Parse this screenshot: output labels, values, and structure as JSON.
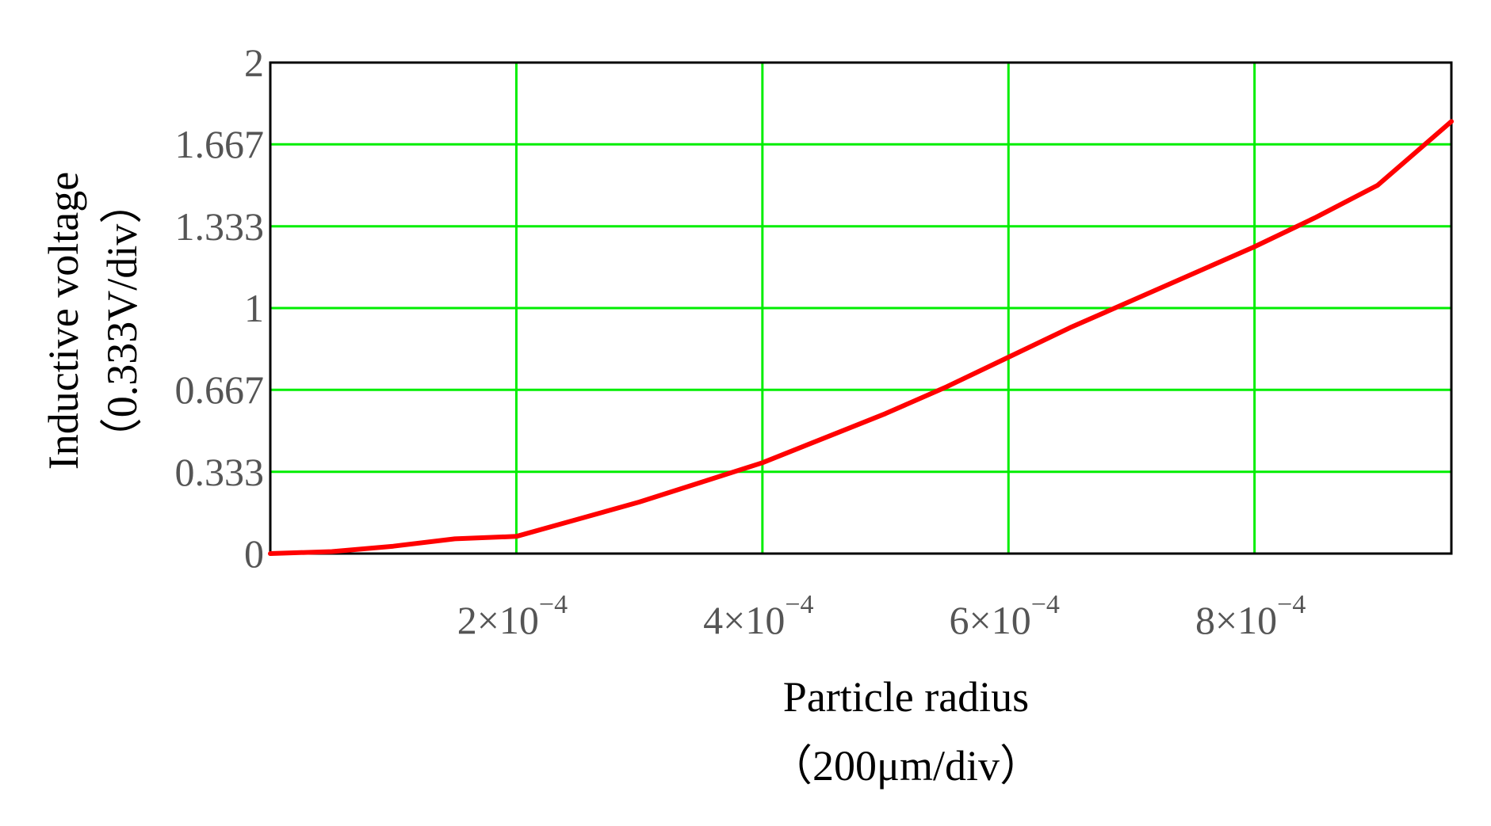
{
  "chart_data": {
    "type": "line",
    "title": "",
    "xlabel": "Particle radius",
    "xlabel_unit": "（200μm/div）",
    "ylabel": "Inductive voltage",
    "ylabel_unit": "（0.333V/div）",
    "xlim": [
      0,
      0.00096
    ],
    "ylim": [
      0,
      2
    ],
    "grid": true,
    "legend": "none",
    "x_ticks": [
      {
        "value": 0.0002,
        "mantissa": "2",
        "times": "×10",
        "exponent": "−4"
      },
      {
        "value": 0.0004,
        "mantissa": "4",
        "times": "×10",
        "exponent": "−4"
      },
      {
        "value": 0.0006,
        "mantissa": "6",
        "times": "×10",
        "exponent": "−4"
      },
      {
        "value": 0.0008,
        "mantissa": "8",
        "times": "×10",
        "exponent": "−4"
      }
    ],
    "y_ticks": [
      {
        "value": 0,
        "label": "0"
      },
      {
        "value": 0.333,
        "label": "0.333"
      },
      {
        "value": 0.667,
        "label": "0.667"
      },
      {
        "value": 1,
        "label": "1"
      },
      {
        "value": 1.333,
        "label": "1.333"
      },
      {
        "value": 1.667,
        "label": "1.667"
      },
      {
        "value": 2,
        "label": "2"
      }
    ],
    "series": [
      {
        "color": "#ff0000",
        "x": [
          0,
          5e-05,
          0.0001,
          0.00015,
          0.0002,
          0.00025,
          0.0003,
          0.00035,
          0.0004,
          0.00045,
          0.0005,
          0.00055,
          0.0006,
          0.00065,
          0.0007,
          0.00075,
          0.0008,
          0.00085,
          0.0009,
          0.00096
        ],
        "y": [
          0,
          0.008,
          0.03,
          0.06,
          0.07,
          0.14,
          0.21,
          0.29,
          0.37,
          0.47,
          0.57,
          0.68,
          0.8,
          0.92,
          1.03,
          1.14,
          1.25,
          1.37,
          1.5,
          1.76
        ]
      }
    ],
    "colors": {
      "grid": "#00ee00",
      "frame": "#000000",
      "line": "#ff0000"
    }
  }
}
